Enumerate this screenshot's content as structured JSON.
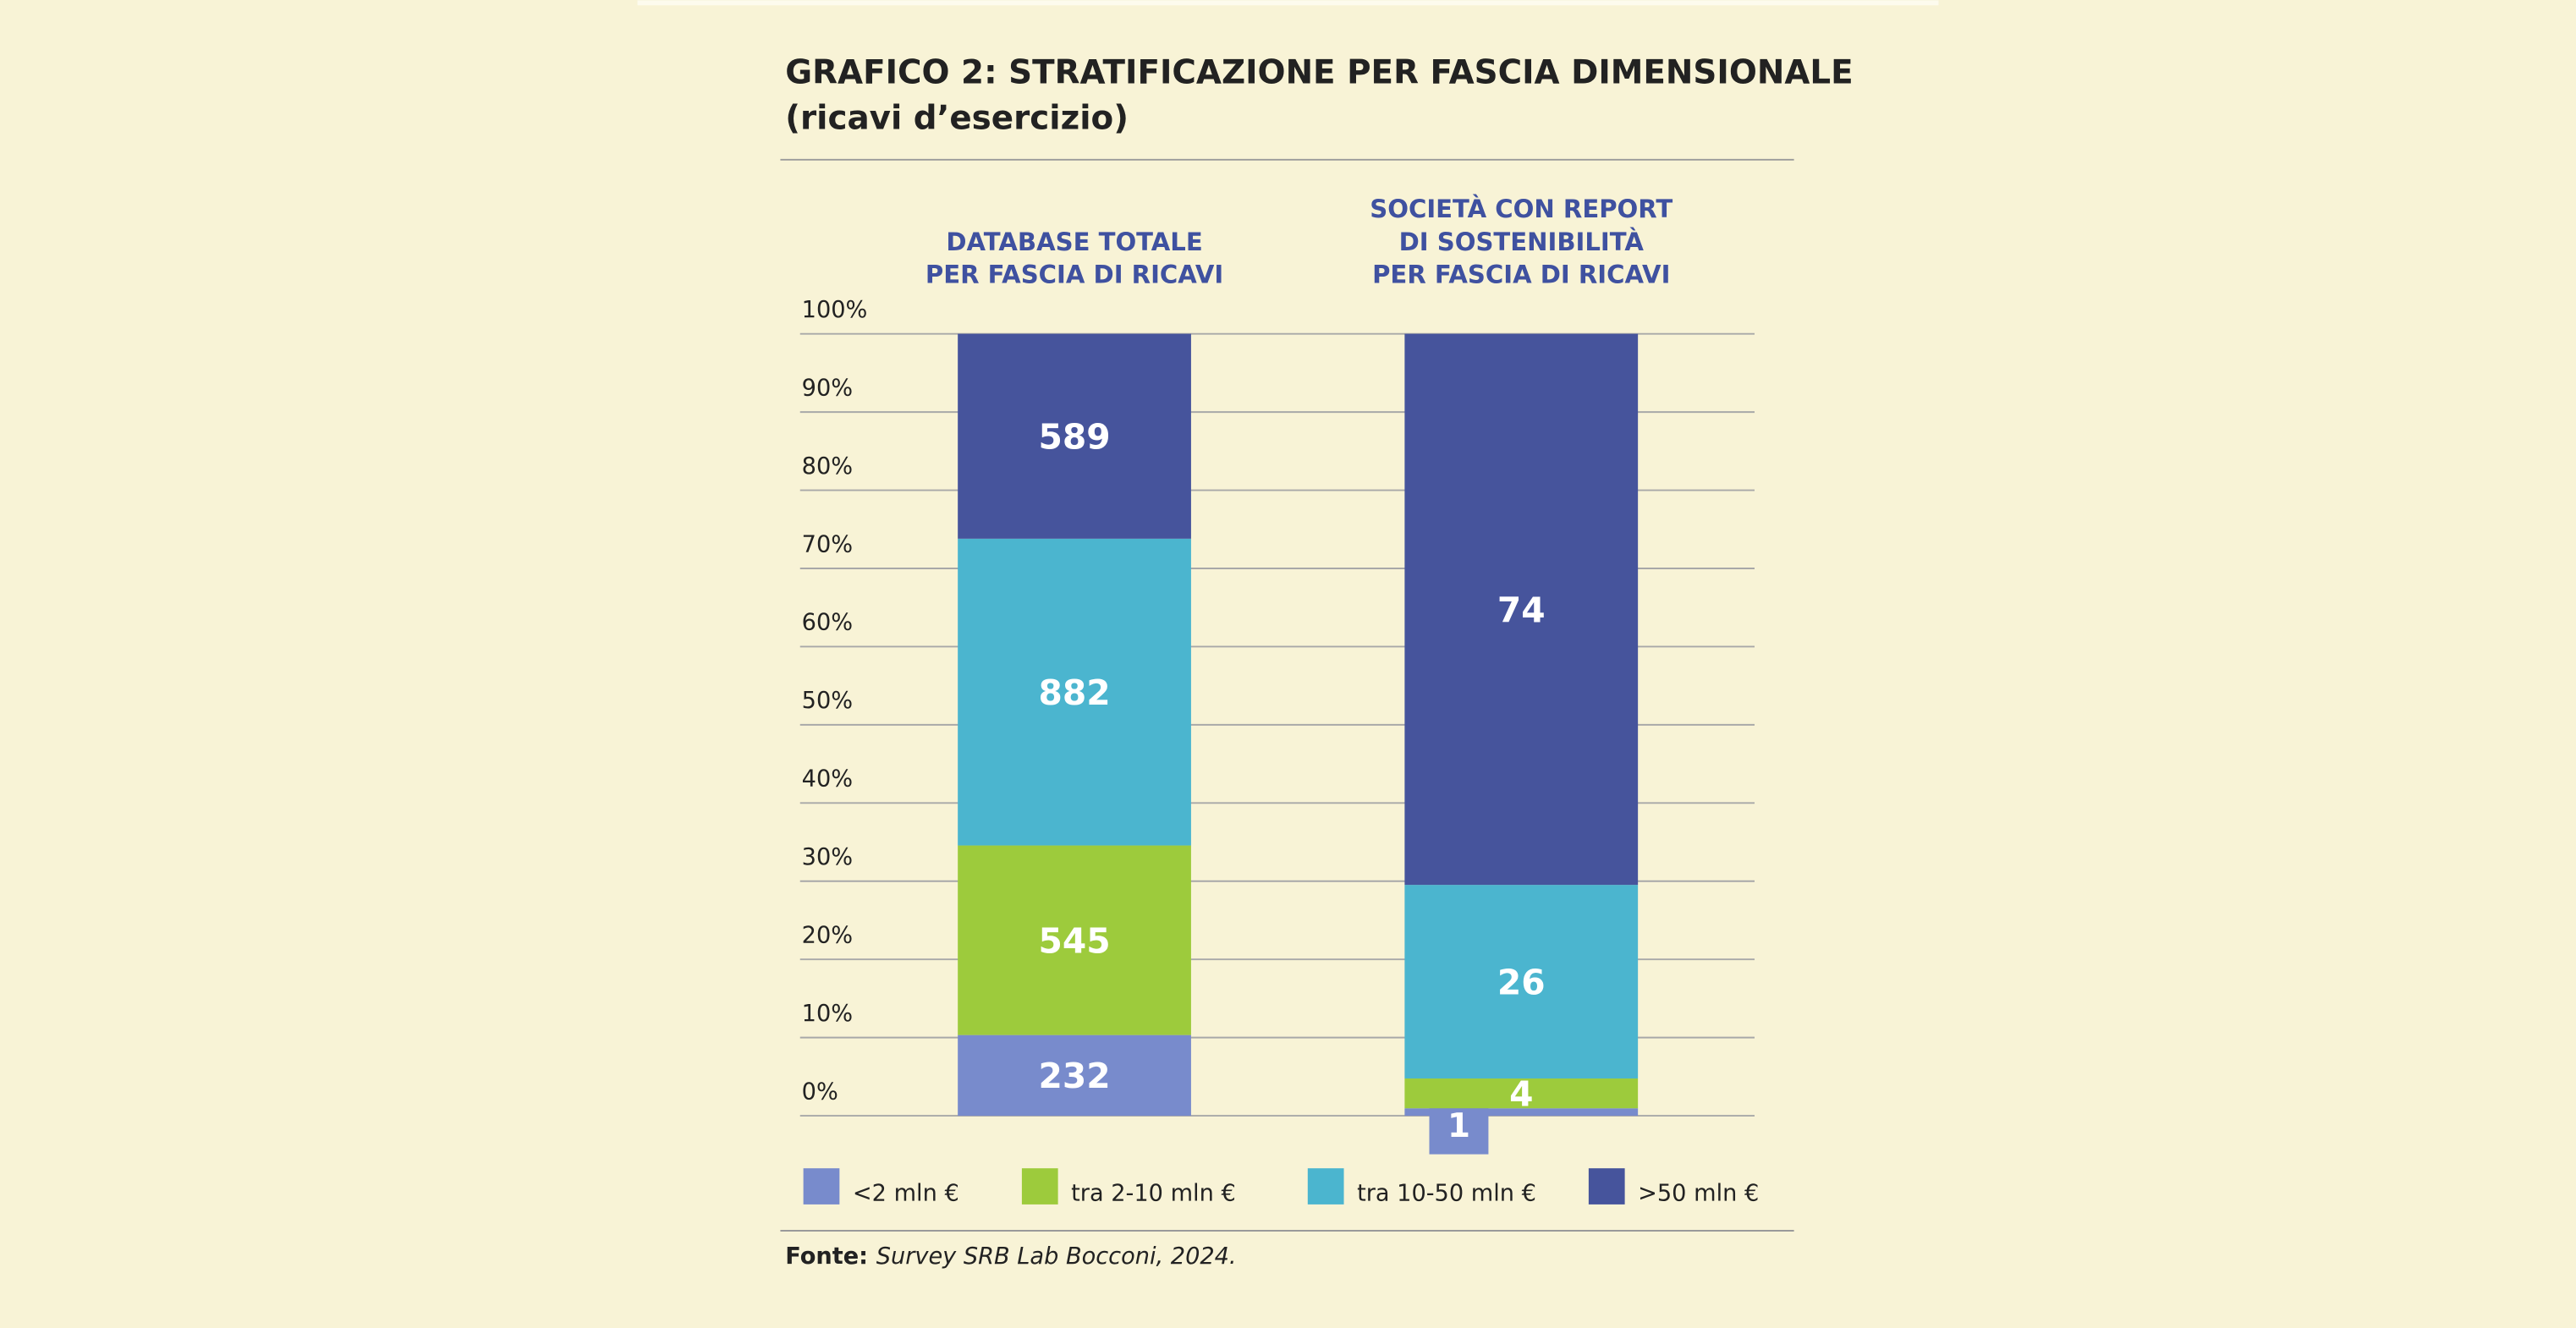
{
  "chart_data": {
    "type": "bar",
    "stacking": "percent",
    "title": "GRAFICO 2: STRATIFICAZIONE PER FASCIA DIMENSIONALE",
    "subtitle": "(ricavi d’esercizio)",
    "categories": [
      [
        "DATABASE TOTALE",
        "PER FASCIA DI RICAVI"
      ],
      [
        "SOCIETÀ CON REPORT",
        "DI SOSTENIBILITÀ",
        "PER FASCIA DI RICAVI"
      ]
    ],
    "series": [
      {
        "name": "<2 mln €",
        "color": "#788bcc",
        "values": [
          232,
          1
        ]
      },
      {
        "name": "tra 2-10 mln €",
        "color": "#9dcb3c",
        "values": [
          545,
          4
        ]
      },
      {
        "name": "tra 10-50 mln €",
        "color": "#4bb5cf",
        "values": [
          882,
          26
        ]
      },
      {
        "name": ">50 mln €",
        "color": "#46549c",
        "values": [
          589,
          74
        ]
      }
    ],
    "ylim": [
      0,
      100
    ],
    "yticks": [
      {
        "value": 0,
        "label": "0%"
      },
      {
        "value": 10,
        "label": "10%"
      },
      {
        "value": 20,
        "label": "20%"
      },
      {
        "value": 30,
        "label": "30%"
      },
      {
        "value": 40,
        "label": "40%"
      },
      {
        "value": 50,
        "label": "50%"
      },
      {
        "value": 60,
        "label": "60%"
      },
      {
        "value": 70,
        "label": "70%"
      },
      {
        "value": 80,
        "label": "80%"
      },
      {
        "value": 90,
        "label": "90%"
      },
      {
        "value": 100,
        "label": "100%"
      }
    ],
    "grid": true,
    "legend": "bottom",
    "source_label": "Fonte:",
    "source": "Survey SRB Lab Bocconi, 2024."
  }
}
